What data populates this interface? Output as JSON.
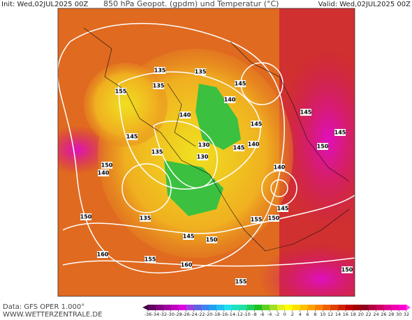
{
  "header": {
    "init": "Init: Wed,02JUL2025 00Z",
    "title": "850 hPa Geopot. (gpdm) und Temperatur (°C)",
    "valid": "Valid: Wed,02JUL2025 00Z"
  },
  "footer": {
    "data_source": "Data: GFS OPER 1.000°",
    "website": "WWW.WETTERZENTRALE.DE"
  },
  "colorbar": {
    "ticks": [
      -36,
      -34,
      -32,
      -30,
      -28,
      -26,
      -24,
      -22,
      -20,
      -18,
      -16,
      -14,
      -12,
      -10,
      -8,
      -6,
      -4,
      -2,
      0,
      2,
      4,
      6,
      8,
      10,
      12,
      14,
      16,
      18,
      20,
      22,
      24,
      26,
      28,
      30,
      32
    ]
  },
  "contour_labels": [
    "135",
    "130",
    "145",
    "155",
    "140",
    "135",
    "150",
    "145",
    "140",
    "135",
    "130",
    "145",
    "140",
    "135",
    "140",
    "145",
    "145",
    "150",
    "155",
    "150",
    "160",
    "155",
    "160",
    "155",
    "150",
    "145",
    "145",
    "150",
    "135",
    "140",
    "145",
    "150"
  ]
}
